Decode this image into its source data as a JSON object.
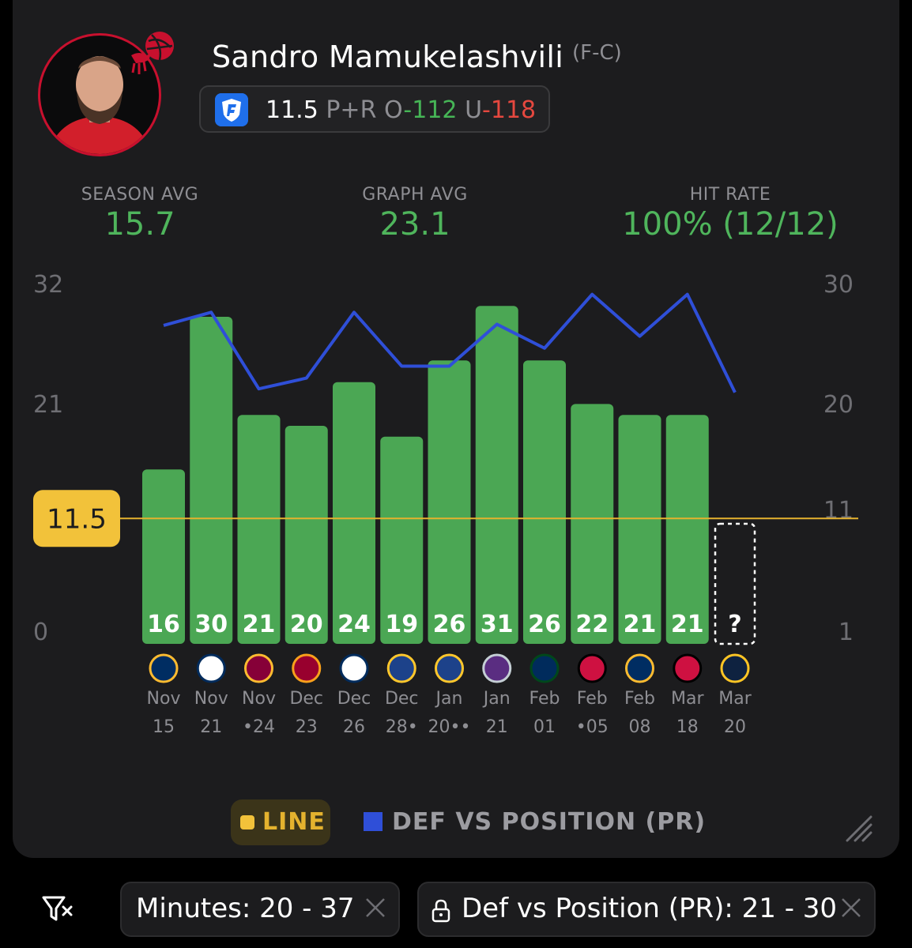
{
  "player": {
    "name": "Sandro Mamukelashvili",
    "position": "(F-C)"
  },
  "prop": {
    "line": "11.5",
    "stat": "P+R",
    "over_label": "O",
    "over_odds": "-112",
    "under_label": "U",
    "under_odds": "-118"
  },
  "stats": {
    "season_avg_label": "SEASON AVG",
    "season_avg": "15.7",
    "graph_avg_label": "GRAPH AVG",
    "graph_avg": "23.1",
    "hit_rate_label": "HIT RATE",
    "hit_rate": "100% (12/12)"
  },
  "legend": {
    "line_label": "LINE",
    "def_label": "DEF VS POSITION (PR)"
  },
  "filters": {
    "minutes": "Minutes: 20 - 37",
    "def_vs_position": "Def vs Position (PR): 21 - 30"
  },
  "colors": {
    "bar": "#4ba754",
    "line": "#e4b22e",
    "def_line": "#2f4fd8",
    "positive": "#46b556",
    "negative": "#e5483f"
  },
  "chart_data": {
    "type": "bar",
    "left_axis_ticks": [
      "32",
      "21",
      "0"
    ],
    "right_axis_ticks": [
      "30",
      "20",
      "11",
      "1"
    ],
    "ylim": [
      0,
      32
    ],
    "right_ylim": [
      1,
      30
    ],
    "line_value": 11.5,
    "line_label": "11.5",
    "categories": [
      {
        "month": "Nov",
        "day": "15",
        "opponent_icon": "pacers-logo-icon"
      },
      {
        "month": "Nov",
        "day": "21",
        "opponent_icon": "wizards-logo-icon"
      },
      {
        "month": "Nov",
        "day": "•24",
        "opponent_icon": "cavaliers-logo-icon"
      },
      {
        "month": "Dec",
        "day": "23",
        "opponent_icon": "heat-logo-icon"
      },
      {
        "month": "Dec",
        "day": "26",
        "opponent_icon": "wizards-logo-icon"
      },
      {
        "month": "Dec",
        "day": "28•",
        "opponent_icon": "warriors-logo-icon"
      },
      {
        "month": "Jan",
        "day": "20••",
        "opponent_icon": "warriors-logo-icon"
      },
      {
        "month": "Jan",
        "day": "21",
        "opponent_icon": "kings-logo-icon"
      },
      {
        "month": "Feb",
        "day": "01",
        "opponent_icon": "jazz-logo-icon"
      },
      {
        "month": "Feb",
        "day": "•05",
        "opponent_icon": "bulls-logo-icon"
      },
      {
        "month": "Feb",
        "day": "08",
        "opponent_icon": "pacers-logo-icon"
      },
      {
        "month": "Mar",
        "day": "18",
        "opponent_icon": "bulls-logo-icon"
      },
      {
        "month": "Mar",
        "day": "20",
        "opponent_icon": "nuggets-logo-icon"
      }
    ],
    "series": [
      {
        "name": "P+R",
        "values": [
          16,
          30,
          21,
          20,
          24,
          19,
          26,
          31,
          26,
          22,
          21,
          21,
          null
        ],
        "value_labels": [
          "16",
          "30",
          "21",
          "20",
          "24",
          "19",
          "26",
          "31",
          "26",
          "22",
          "21",
          "21",
          "?"
        ]
      },
      {
        "name": "DEF VS POSITION (PR)",
        "axis": "right",
        "values": [
          26.5,
          27.6,
          21.2,
          22.1,
          27.6,
          23.1,
          23.1,
          26.6,
          24.6,
          29.1,
          25.6,
          29.1,
          20.9
        ]
      }
    ]
  }
}
